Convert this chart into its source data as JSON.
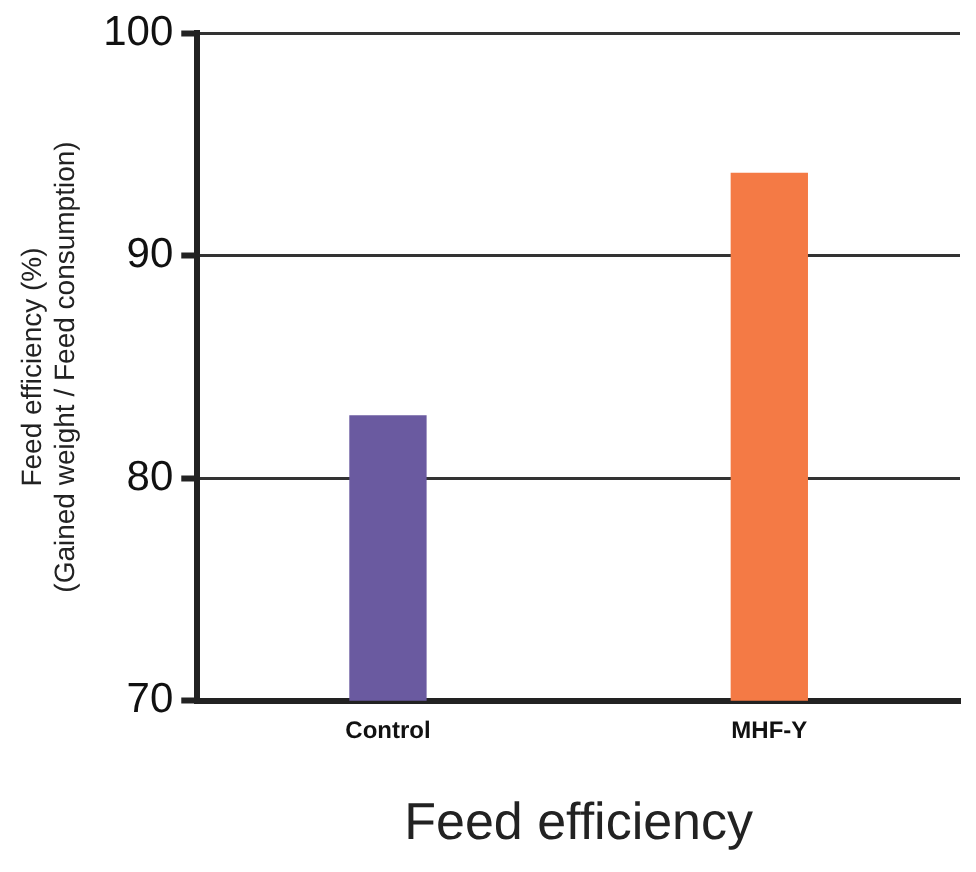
{
  "chart_data": {
    "type": "bar",
    "xlabel": "Feed efficiency",
    "ylabel": [
      "Feed efficiency (%)",
      "(Gained weight / Feed consumption)"
    ],
    "categories": [
      "Control",
      "MHF-Y"
    ],
    "values": [
      82.8,
      93.7
    ],
    "colors": [
      "#6a5aa0",
      "#f47a45"
    ],
    "ylim": [
      70,
      100
    ],
    "yticks": [
      70,
      80,
      90,
      100
    ],
    "grid": "y",
    "legend": false
  }
}
